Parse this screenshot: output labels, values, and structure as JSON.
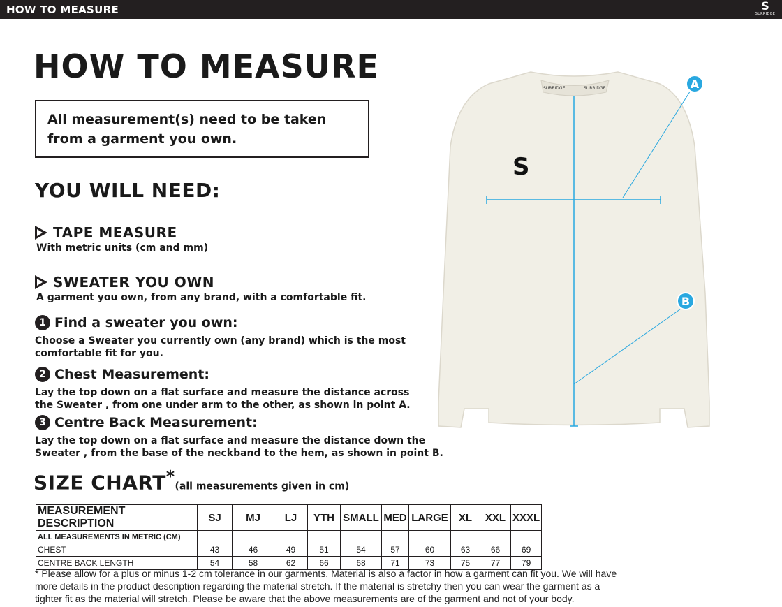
{
  "header": {
    "title": "HOW TO MEASURE",
    "brand": "SURRIDGE"
  },
  "main_title": "HOW TO MEASURE",
  "note": "All measurement(s) need to be taken from a garment you own.",
  "you_will_need": {
    "title": "YOU WILL NEED:",
    "items": [
      {
        "title": "TAPE MEASURE",
        "desc": "With metric units (cm and mm)"
      },
      {
        "title": "SWEATER YOU OWN",
        "desc": "A garment you own, from any brand, with a comfortable fit."
      }
    ]
  },
  "steps": [
    {
      "num": "1",
      "title": "Find a sweater you own:",
      "text": "Choose a Sweater you currently own (any brand) which is the most comfortable fit for you."
    },
    {
      "num": "2",
      "title": "Chest Measurement:",
      "text": "Lay the top down on a flat surface and measure the distance across the Sweater , from one under arm to the other, as shown in point A."
    },
    {
      "num": "3",
      "title": "Centre Back Measurement:",
      "text": "Lay the top down on a flat surface and measure the distance down the Sweater , from the base of the neckband to the hem, as shown in point B."
    }
  ],
  "size_chart": {
    "title": "SIZE CHART",
    "asterisk": "*",
    "subtitle": "(all measurements given in cm)",
    "header": [
      "MEASUREMENT DESCRIPTION",
      "SJ",
      "MJ",
      "LJ",
      "YTH",
      "SMALL",
      "MED",
      "LARGE",
      "XL",
      "XXL",
      "XXXL"
    ],
    "metric_label": "ALL MEASUREMENTS IN METRIC (CM)",
    "rows": [
      {
        "label": "CHEST",
        "values": [
          "43",
          "46",
          "49",
          "51",
          "54",
          "57",
          "60",
          "63",
          "66",
          "69"
        ]
      },
      {
        "label": "CENTRE BACK LENGTH",
        "values": [
          "54",
          "58",
          "62",
          "66",
          "68",
          "71",
          "73",
          "75",
          "77",
          "79"
        ]
      }
    ]
  },
  "footnote": "* Please allow for a plus or minus 1-2 cm tolerance in our garments. Material is also a factor in how a garment can fit you. We will have more details in the product description regarding the material stretch.  If the material is stretchy then you can wear the garment as a tighter fit as the material will stretch.  Please be aware that the above measurements are of the garment and not of your body.",
  "diagram": {
    "point_a": "A",
    "point_b": "B",
    "neck_label": "SURRIDGE",
    "accent": "#29a8e0",
    "garment_color": "#f1efe6"
  }
}
